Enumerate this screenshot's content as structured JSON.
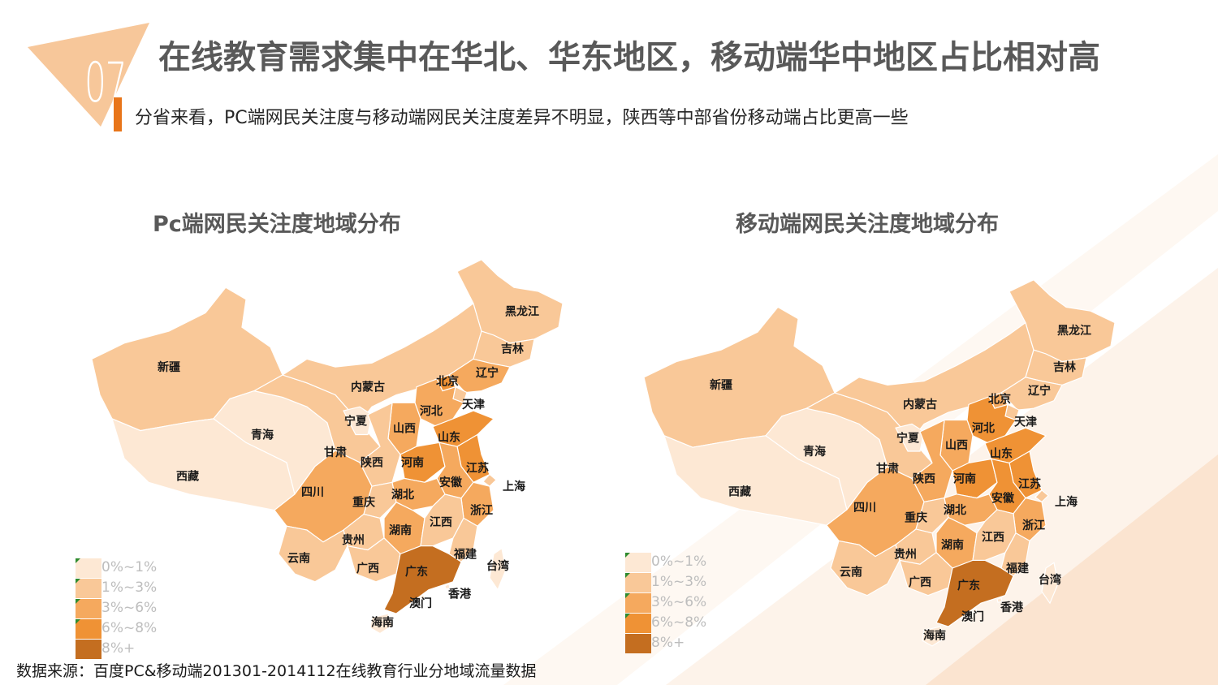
{
  "header": {
    "badge_number": "07",
    "title": "在线教育需求集中在华北、华东地区，移动端华中地区占比相对高",
    "subtitle": "分省来看，PC端网民关注度与移动端网民关注度差异不明显，陕西等中部省份移动端占比更高一些"
  },
  "colors": {
    "accent": "#e8751a",
    "badge": "#f7c79a",
    "tier_0_1": "#fde8d4",
    "tier_1_3": "#f9c898",
    "tier_3_6": "#f5a95e",
    "tier_6_8": "#ef9235",
    "tier_8_plus": "#c46e20"
  },
  "maps": [
    {
      "title": "Pc端网民关注度地域分布",
      "legend": [
        "0%~1%",
        "1%~3%",
        "3%~6%",
        "6%~8%",
        "8%+"
      ],
      "provinces": [
        {
          "name": "新疆",
          "tier": 1
        },
        {
          "name": "西藏",
          "tier": 0
        },
        {
          "name": "青海",
          "tier": 0
        },
        {
          "name": "甘肃",
          "tier": 1
        },
        {
          "name": "内蒙古",
          "tier": 1
        },
        {
          "name": "宁夏",
          "tier": 0
        },
        {
          "name": "黑龙江",
          "tier": 1
        },
        {
          "name": "吉林",
          "tier": 1
        },
        {
          "name": "辽宁",
          "tier": 2
        },
        {
          "name": "北京",
          "tier": 3
        },
        {
          "name": "天津",
          "tier": 1
        },
        {
          "name": "河北",
          "tier": 2
        },
        {
          "name": "山西",
          "tier": 2
        },
        {
          "name": "陕西",
          "tier": 1
        },
        {
          "name": "山东",
          "tier": 3
        },
        {
          "name": "河南",
          "tier": 3
        },
        {
          "name": "江苏",
          "tier": 3
        },
        {
          "name": "安徽",
          "tier": 2
        },
        {
          "name": "上海",
          "tier": 1
        },
        {
          "name": "四川",
          "tier": 2
        },
        {
          "name": "重庆",
          "tier": 1
        },
        {
          "name": "湖北",
          "tier": 2
        },
        {
          "name": "浙江",
          "tier": 2
        },
        {
          "name": "湖南",
          "tier": 2
        },
        {
          "name": "江西",
          "tier": 1
        },
        {
          "name": "贵州",
          "tier": 1
        },
        {
          "name": "云南",
          "tier": 1
        },
        {
          "name": "广西",
          "tier": 1
        },
        {
          "name": "福建",
          "tier": 1
        },
        {
          "name": "台湾",
          "tier": 0
        },
        {
          "name": "广东",
          "tier": 4
        },
        {
          "name": "香港",
          "tier": 0
        },
        {
          "name": "澳门",
          "tier": 0
        },
        {
          "name": "海南",
          "tier": 0
        }
      ]
    },
    {
      "title": "移动端网民关注度地域分布",
      "legend": [
        "0%~1%",
        "1%~3%",
        "3%~6%",
        "6%~8%",
        "8%+"
      ],
      "provinces": [
        {
          "name": "新疆",
          "tier": 1
        },
        {
          "name": "西藏",
          "tier": 0
        },
        {
          "name": "青海",
          "tier": 0
        },
        {
          "name": "甘肃",
          "tier": 1
        },
        {
          "name": "内蒙古",
          "tier": 1
        },
        {
          "name": "宁夏",
          "tier": 0
        },
        {
          "name": "黑龙江",
          "tier": 1
        },
        {
          "name": "吉林",
          "tier": 1
        },
        {
          "name": "辽宁",
          "tier": 1
        },
        {
          "name": "北京",
          "tier": 2
        },
        {
          "name": "天津",
          "tier": 1
        },
        {
          "name": "河北",
          "tier": 3
        },
        {
          "name": "山西",
          "tier": 2
        },
        {
          "name": "陕西",
          "tier": 2
        },
        {
          "name": "山东",
          "tier": 3
        },
        {
          "name": "河南",
          "tier": 3
        },
        {
          "name": "江苏",
          "tier": 3
        },
        {
          "name": "安徽",
          "tier": 3
        },
        {
          "name": "上海",
          "tier": 1
        },
        {
          "name": "四川",
          "tier": 2
        },
        {
          "name": "重庆",
          "tier": 1
        },
        {
          "name": "湖北",
          "tier": 2
        },
        {
          "name": "浙江",
          "tier": 2
        },
        {
          "name": "湖南",
          "tier": 2
        },
        {
          "name": "江西",
          "tier": 1
        },
        {
          "name": "贵州",
          "tier": 1
        },
        {
          "name": "云南",
          "tier": 1
        },
        {
          "name": "广西",
          "tier": 1
        },
        {
          "name": "福建",
          "tier": 1
        },
        {
          "name": "台湾",
          "tier": 0
        },
        {
          "name": "广东",
          "tier": 4
        },
        {
          "name": "香港",
          "tier": 0
        },
        {
          "name": "澳门",
          "tier": 0
        },
        {
          "name": "海南",
          "tier": 0
        }
      ]
    }
  ],
  "footer": {
    "source": "数据来源：百度PC&移动端201301-2014112在线教育行业分地域流量数据"
  }
}
